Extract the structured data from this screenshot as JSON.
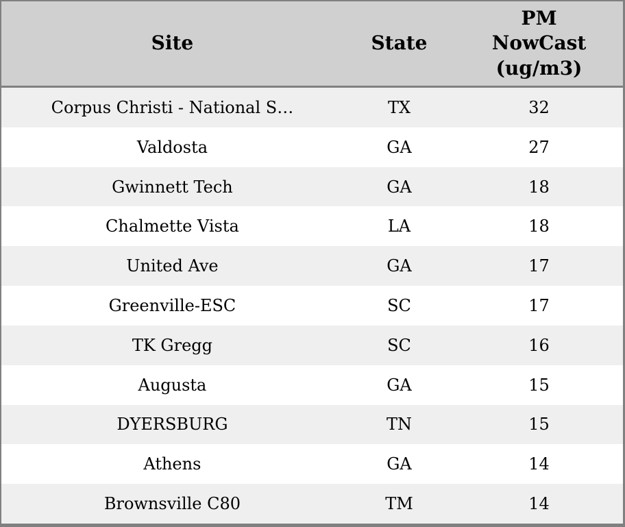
{
  "colors": {
    "header_background": "#d0d0d0",
    "row_stripe": "#efefef",
    "row_plain": "#ffffff",
    "border": "#808080",
    "text": "#000000"
  },
  "table": {
    "columns": [
      {
        "key": "site",
        "label": "Site"
      },
      {
        "key": "state",
        "label": "State"
      },
      {
        "key": "value",
        "label": [
          "PM",
          "NowCast",
          "(ug/m3)"
        ]
      }
    ],
    "rows": [
      {
        "site": "Corpus Christi - National S…",
        "state": "TX",
        "value": "32"
      },
      {
        "site": "Valdosta",
        "state": "GA",
        "value": "27"
      },
      {
        "site": "Gwinnett Tech",
        "state": "GA",
        "value": "18"
      },
      {
        "site": "Chalmette Vista",
        "state": "LA",
        "value": "18"
      },
      {
        "site": "United Ave",
        "state": "GA",
        "value": "17"
      },
      {
        "site": "Greenville-ESC",
        "state": "SC",
        "value": "17"
      },
      {
        "site": "TK Gregg",
        "state": "SC",
        "value": "16"
      },
      {
        "site": "Augusta",
        "state": "GA",
        "value": "15"
      },
      {
        "site": "DYERSBURG",
        "state": "TN",
        "value": "15"
      },
      {
        "site": "Athens",
        "state": "GA",
        "value": "14"
      },
      {
        "site": "Brownsville C80",
        "state": "TM",
        "value": "14"
      }
    ]
  }
}
